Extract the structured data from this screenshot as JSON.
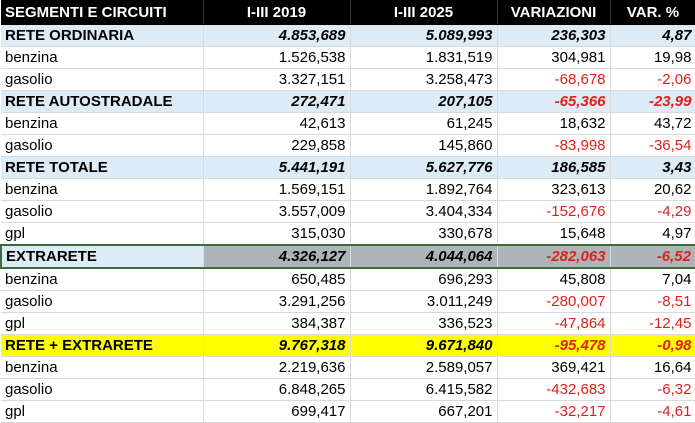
{
  "headers": [
    "SEGMENTI E CIRCUITI",
    "I-III 2019",
    "I-III 2025",
    "VARIAZIONI",
    "VAR. %"
  ],
  "rows": [
    {
      "type": "group",
      "style": "blue",
      "label": "RETE ORDINARIA",
      "v2019": "4.853,689",
      "v2025": "5.089,993",
      "var": "236,303",
      "pct": "4,87",
      "neg": false
    },
    {
      "type": "item",
      "label": "benzina",
      "v2019": "1.526,538",
      "v2025": "1.831,519",
      "var": "304,981",
      "pct": "19,98",
      "neg": false
    },
    {
      "type": "item",
      "label": "gasolio",
      "v2019": "3.327,151",
      "v2025": "3.258,473",
      "var": "-68,678",
      "pct": "-2,06",
      "neg": true
    },
    {
      "type": "group",
      "style": "blue",
      "label": "RETE AUTOSTRADALE",
      "v2019": "272,471",
      "v2025": "207,105",
      "var": "-65,366",
      "pct": "-23,99",
      "neg": true
    },
    {
      "type": "item",
      "label": "benzina",
      "v2019": "42,613",
      "v2025": "61,245",
      "var": "18,632",
      "pct": "43,72",
      "neg": false
    },
    {
      "type": "item",
      "label": "gasolio",
      "v2019": "229,858",
      "v2025": "145,860",
      "var": "-83,998",
      "pct": "-36,54",
      "neg": true
    },
    {
      "type": "group",
      "style": "blue",
      "label": "RETE TOTALE",
      "v2019": "5.441,191",
      "v2025": "5.627,776",
      "var": "186,585",
      "pct": "3,43",
      "neg": false
    },
    {
      "type": "item",
      "label": "benzina",
      "v2019": "1.569,151",
      "v2025": "1.892,764",
      "var": "323,613",
      "pct": "20,62",
      "neg": false
    },
    {
      "type": "item",
      "label": "gasolio",
      "v2019": "3.557,009",
      "v2025": "3.404,334",
      "var": "-152,676",
      "pct": "-4,29",
      "neg": true
    },
    {
      "type": "item",
      "label": "gpl",
      "v2019": "315,030",
      "v2025": "330,678",
      "var": "15,648",
      "pct": "4,97",
      "neg": false
    },
    {
      "type": "group",
      "style": "gray",
      "label": "EXTRARETE",
      "v2019": "4.326,127",
      "v2025": "4.044,064",
      "var": "-282,063",
      "pct": "-6,52",
      "neg": true
    },
    {
      "type": "item",
      "label": "benzina",
      "v2019": "650,485",
      "v2025": "696,293",
      "var": "45,808",
      "pct": "7,04",
      "neg": false
    },
    {
      "type": "item",
      "label": "gasolio",
      "v2019": "3.291,256",
      "v2025": "3.011,249",
      "var": "-280,007",
      "pct": "-8,51",
      "neg": true
    },
    {
      "type": "item",
      "label": "gpl",
      "v2019": "384,387",
      "v2025": "336,523",
      "var": "-47,864",
      "pct": "-12,45",
      "neg": true
    },
    {
      "type": "group",
      "style": "yellow",
      "label": "RETE + EXTRARETE",
      "v2019": "9.767,318",
      "v2025": "9.671,840",
      "var": "-95,478",
      "pct": "-0,98",
      "neg": true
    },
    {
      "type": "item",
      "label": "benzina",
      "v2019": "2.219,636",
      "v2025": "2.589,057",
      "var": "369,421",
      "pct": "16,64",
      "neg": false
    },
    {
      "type": "item",
      "label": "gasolio",
      "v2019": "6.848,265",
      "v2025": "6.415,582",
      "var": "-432,683",
      "pct": "-6,32",
      "neg": true
    },
    {
      "type": "item",
      "label": "gpl",
      "v2019": "699,417",
      "v2025": "667,201",
      "var": "-32,217",
      "pct": "-4,61",
      "neg": true
    }
  ]
}
